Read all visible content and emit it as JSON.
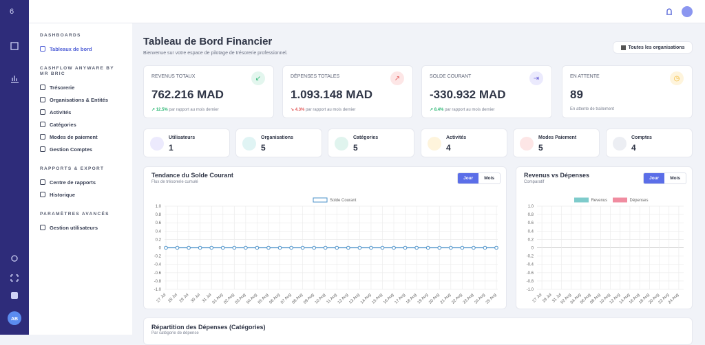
{
  "sidebar": {
    "avatar": "AB",
    "sections": [
      {
        "title": "DASHBOARDS",
        "items": [
          "Tableaux de bord"
        ]
      },
      {
        "title": "CASHFLOW ANYWARE BY MR BRIC",
        "items": [
          "Trésorerie",
          "Organisations & Entités",
          "Activités",
          "Catégories",
          "Modes de paiement",
          "Gestion Comptes"
        ]
      },
      {
        "title": "RAPPORTS & EXPORT",
        "items": [
          "Centre de rapports",
          "Historique"
        ]
      },
      {
        "title": "PARAMÈTRES AVANCÉS",
        "items": [
          "Gestion utilisateurs"
        ]
      }
    ]
  },
  "header": {
    "title": "Tableau de Bord Financier",
    "subtitle": "Bienvenue sur votre espace de pilotage de trésorerie professionnel.",
    "button": "Toutes les organisations"
  },
  "kpis": [
    {
      "label": "REVENUS TOTAUX",
      "value": "762.216 MAD",
      "change": "12.5%",
      "note": "par rapport au mois dernier"
    },
    {
      "label": "DÉPENSES TOTALES",
      "value": "1.093.148 MAD",
      "change": "4.3%",
      "note": "par rapport au mois dernier"
    },
    {
      "label": "SOLDE COURANT",
      "value": "-330.932 MAD",
      "change": "8.4%",
      "note": "par rapport au mois dernier"
    },
    {
      "label": "EN ATTENTE",
      "value": "89",
      "note": "En attente de traitement"
    }
  ],
  "stats": [
    {
      "label": "Utilisateurs",
      "value": "1"
    },
    {
      "label": "Organisations",
      "value": "5"
    },
    {
      "label": "Catégories",
      "value": "5"
    },
    {
      "label": "Activités",
      "value": "4"
    },
    {
      "label": "Modes Paiement",
      "value": "5"
    },
    {
      "label": "Comptes",
      "value": "4"
    }
  ],
  "charts": [
    {
      "type": "line",
      "title": "Tendance du Solde Courant",
      "subtitle": "Flux de trésorerie cumulé",
      "buttons": [
        "Jour",
        "Mois"
      ],
      "categories": [
        "27 Jul",
        "28 Jul",
        "29 Jul",
        "30 Jul",
        "31 Jul",
        "01 Aug",
        "02 Aug",
        "03 Aug",
        "04 Aug",
        "05 Aug",
        "06 Aug",
        "07 Aug",
        "08 Aug",
        "09 Aug",
        "10 Aug",
        "11 Aug",
        "12 Aug",
        "13 Aug",
        "14 Aug",
        "15 Aug",
        "16 Aug",
        "17 Aug",
        "18 Aug",
        "19 Aug",
        "20 Aug",
        "21 Aug",
        "22 Aug",
        "23 Aug",
        "24 Aug",
        "25 Aug"
      ],
      "series": [
        {
          "name": "Solde Courant",
          "color": "#4a90c8",
          "values": [
            0,
            0,
            0,
            0,
            0,
            0,
            0,
            0,
            0,
            0,
            0,
            0,
            0,
            0,
            0,
            0,
            0,
            0,
            0,
            0,
            0,
            0,
            0,
            0,
            0,
            0,
            0,
            0,
            0,
            0
          ]
        }
      ],
      "ylim": [
        -1,
        1
      ],
      "yticks": [
        {
          "value": 1,
          "label": "1.0"
        },
        0.8,
        0.6,
        0.4,
        0.2,
        0,
        -0.2,
        -0.4,
        -0.6,
        -0.8,
        {
          "value": -1,
          "label": "-1.0"
        }
      ],
      "grid": true
    },
    {
      "type": "bar",
      "title": "Revenus vs Dépenses",
      "subtitle": "Comparatif",
      "buttons": [
        "Jour",
        "Mois"
      ],
      "categories": [
        "27 Jul",
        "29 Jul",
        "31 Jul",
        "02 Aug",
        "04 Aug",
        "06 Aug",
        "08 Aug",
        "10 Aug",
        "12 Aug",
        "14 Aug",
        "16 Aug",
        "18 Aug",
        "20 Aug",
        "22 Aug",
        "24 Aug"
      ],
      "series": [
        {
          "name": "Revenus",
          "color": "#7ecbcb",
          "values": [
            0,
            0,
            0,
            0,
            0,
            0,
            0,
            0,
            0,
            0,
            0,
            0,
            0,
            0,
            0
          ]
        },
        {
          "name": "Dépenses",
          "color": "#f08ca0",
          "values": [
            0,
            0,
            0,
            0,
            0,
            0,
            0,
            0,
            0,
            0,
            0,
            0,
            0,
            0,
            0
          ]
        }
      ],
      "ylim": [
        -1,
        1
      ],
      "yticks": [
        {
          "value": 1,
          "label": "1.0"
        },
        0.8,
        0.6,
        0.4,
        0.2,
        0,
        -0.2,
        -0.4,
        -0.6,
        -0.8,
        {
          "value": -1,
          "label": "-1.0"
        }
      ],
      "grid": true
    }
  ],
  "bottom": {
    "title": "Répartition des Dépenses (Catégories)",
    "subtitle": "Par catégorie de dépense"
  }
}
